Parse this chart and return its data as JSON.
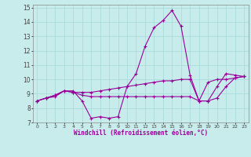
{
  "xlabel": "Windchill (Refroidissement éolien,°C)",
  "xlim": [
    -0.5,
    23.5
  ],
  "ylim": [
    7,
    15.2
  ],
  "yticks": [
    7,
    8,
    9,
    10,
    11,
    12,
    13,
    14,
    15
  ],
  "xticks": [
    0,
    1,
    2,
    3,
    4,
    5,
    6,
    7,
    8,
    9,
    10,
    11,
    12,
    13,
    14,
    15,
    16,
    17,
    18,
    19,
    20,
    21,
    22,
    23
  ],
  "bg_color": "#c8ecec",
  "grid_color": "#aadddd",
  "line_color": "#990099",
  "line1": [
    8.5,
    8.7,
    8.8,
    9.2,
    9.2,
    8.5,
    7.3,
    7.4,
    7.3,
    7.4,
    9.5,
    10.4,
    12.3,
    13.6,
    14.1,
    14.8,
    13.7,
    10.3,
    8.5,
    8.5,
    9.5,
    10.4,
    10.3,
    10.2
  ],
  "line2": [
    8.5,
    8.7,
    8.9,
    9.2,
    9.1,
    9.1,
    9.1,
    9.2,
    9.3,
    9.4,
    9.5,
    9.6,
    9.7,
    9.8,
    9.9,
    9.9,
    10.0,
    10.0,
    8.5,
    9.8,
    10.0,
    10.0,
    10.1,
    10.2
  ],
  "line3": [
    8.5,
    8.7,
    8.9,
    9.2,
    9.1,
    8.9,
    8.8,
    8.8,
    8.8,
    8.8,
    8.8,
    8.8,
    8.8,
    8.8,
    8.8,
    8.8,
    8.8,
    8.8,
    8.5,
    8.5,
    8.7,
    9.5,
    10.1,
    10.2
  ]
}
